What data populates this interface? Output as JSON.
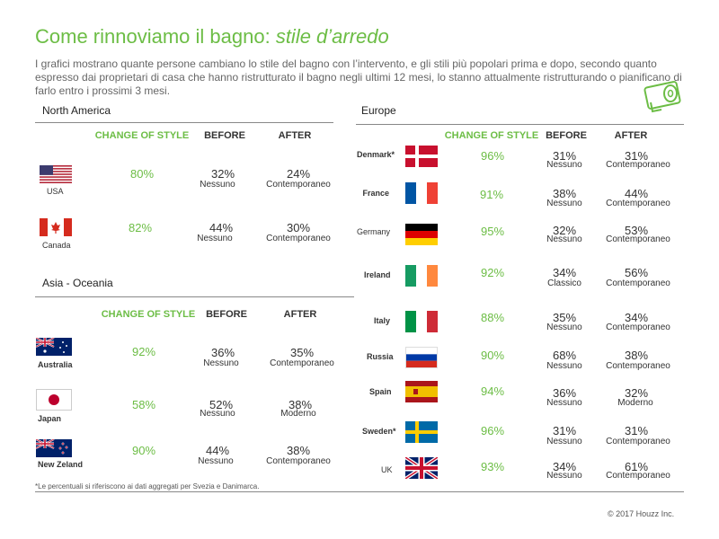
{
  "title": {
    "main": "Come rinnoviamo il bagno: ",
    "italic": "stile d’arredo"
  },
  "intro": "I grafici mostrano quante persone cambiano lo stile del bagno con l’intervento, e gli stili più popolari prima e dopo, secondo quanto espresso dai proprietari di casa che hanno ristrutturato il bagno negli ultimi 12 mesi, lo stanno attualmente ristrutturando o pianificano di farlo entro i prossimi 3 mesi.",
  "headers": {
    "change": "CHANGE OF STYLE",
    "before": "BEFORE",
    "after": "AFTER"
  },
  "north_america": {
    "title": "North America",
    "rows": [
      {
        "country": "USA",
        "change": "80%",
        "before_pct": "32%",
        "before_style": "Nessuno",
        "after_pct": "24%",
        "after_style": "Contemporaneo"
      },
      {
        "country": "Canada",
        "change": "82%",
        "before_pct": "44%",
        "before_style": "Nessuno",
        "after_pct": "30%",
        "after_style": "Contemporaneo"
      }
    ]
  },
  "asia_oceania": {
    "title": "Asia - Oceania",
    "rows": [
      {
        "country": "Australia",
        "change": "92%",
        "before_pct": "36%",
        "before_style": "Nessuno",
        "after_pct": "35%",
        "after_style": "Contemporaneo"
      },
      {
        "country": "Japan",
        "change": "58%",
        "before_pct": "52%",
        "before_style": "Nessuno",
        "after_pct": "38%",
        "after_style": "Moderno"
      },
      {
        "country": "New Zeland",
        "change": "90%",
        "before_pct": "44%",
        "before_style": "Nessuno",
        "after_pct": "38%",
        "after_style": "Contemporaneo"
      }
    ]
  },
  "europe": {
    "title": "Europe",
    "rows": [
      {
        "country": "Denmark*",
        "change": "96%",
        "before_pct": "31%",
        "before_style": "Nessuno",
        "after_pct": "31%",
        "after_style": "Contemporaneo"
      },
      {
        "country": "France",
        "change": "91%",
        "before_pct": "38%",
        "before_style": "Nessuno",
        "after_pct": "44%",
        "after_style": "Contemporaneo"
      },
      {
        "country": "Germany",
        "change": "95%",
        "before_pct": "32%",
        "before_style": "Nessuno",
        "after_pct": "53%",
        "after_style": "Contemporaneo"
      },
      {
        "country": "Ireland",
        "change": "92%",
        "before_pct": "34%",
        "before_style": "Classico",
        "after_pct": "56%",
        "after_style": "Contemporaneo"
      },
      {
        "country": "Italy",
        "change": "88%",
        "before_pct": "35%",
        "before_style": "Nessuno",
        "after_pct": "34%",
        "after_style": "Contemporaneo"
      },
      {
        "country": "Russia",
        "change": "90%",
        "before_pct": "68%",
        "before_style": "Nessuno",
        "after_pct": "38%",
        "after_style": "Contemporaneo"
      },
      {
        "country": "Spain",
        "change": "94%",
        "before_pct": "36%",
        "before_style": "Nessuno",
        "after_pct": "32%",
        "after_style": "Moderno"
      },
      {
        "country": "Sweden*",
        "change": "96%",
        "before_pct": "31%",
        "before_style": "Nessuno",
        "after_pct": "31%",
        "after_style": "Contemporaneo"
      },
      {
        "country": "UK",
        "change": "93%",
        "before_pct": "34%",
        "before_style": "Nessuno",
        "after_pct": "61%",
        "after_style": "Contemporaneo"
      }
    ]
  },
  "footnote": "*Le percentuali si riferiscono ai dati aggregati per Svezia e Danimarca.",
  "copyright": "© 2017 Houzz Inc.",
  "icons": {
    "bathroom": "toilet-paper-icon"
  },
  "colors": {
    "accent": "#6cbd45",
    "text": "#333333"
  }
}
